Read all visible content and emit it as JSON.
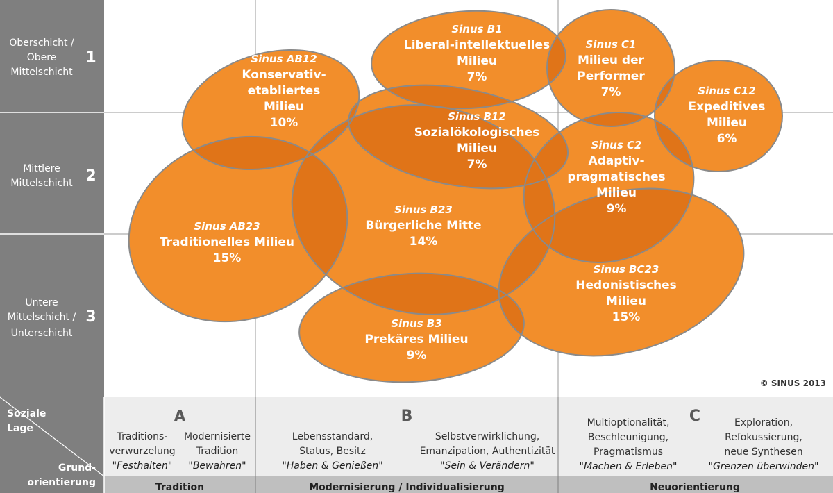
{
  "rows": [
    {
      "label_lines": [
        "Oberschicht /",
        "Obere",
        "Mittelschicht"
      ],
      "number": "1"
    },
    {
      "label_lines": [
        "Mittlere",
        "Mittelschicht"
      ],
      "number": "2"
    },
    {
      "label_lines": [
        "Untere",
        "Mittelschicht /",
        "Unterschicht"
      ],
      "number": "3"
    }
  ],
  "milieus": [
    {
      "code": "Sinus AB12",
      "lines": [
        "Konservativ-",
        "etabliertes",
        "Milieu"
      ],
      "percent": "10%"
    },
    {
      "code": "Sinus B1",
      "lines": [
        "Liberal-intellektuelles",
        "Milieu"
      ],
      "percent": "7%"
    },
    {
      "code": "Sinus C1",
      "lines": [
        "Milieu der",
        "Performer"
      ],
      "percent": "7%"
    },
    {
      "code": "Sinus C12",
      "lines": [
        "Expeditives",
        "Milieu"
      ],
      "percent": "6%"
    },
    {
      "code": "Sinus B12",
      "lines": [
        "Sozialökologisches",
        "Milieu"
      ],
      "percent": "7%"
    },
    {
      "code": "Sinus C2",
      "lines": [
        "Adaptiv-",
        "pragmatisches",
        "Milieu"
      ],
      "percent": "9%"
    },
    {
      "code": "Sinus AB23",
      "lines": [
        "Traditionelles Milieu"
      ],
      "percent": "15%"
    },
    {
      "code": "Sinus B23",
      "lines": [
        "Bürgerliche Mitte"
      ],
      "percent": "14%"
    },
    {
      "code": "Sinus BC23",
      "lines": [
        "Hedonistisches",
        "Milieu"
      ],
      "percent": "15%"
    },
    {
      "code": "Sinus B3",
      "lines": [
        "Prekäres Milieu"
      ],
      "percent": "9%"
    }
  ],
  "copyright": "© SINUS 2013",
  "axis": {
    "soziale_lage_lines": [
      "Soziale",
      "Lage"
    ],
    "grundorientierung_lines": [
      "Grund-",
      "orientierung"
    ]
  },
  "columns": [
    {
      "letter": "A",
      "bottom_label": "Tradition"
    },
    {
      "letter": "B",
      "bottom_label": "Modernisierung / Individualisierung"
    },
    {
      "letter": "C",
      "bottom_label": "Neuorientierung"
    }
  ],
  "orientations": [
    {
      "lines": [
        "Traditions-",
        "verwurzelung"
      ],
      "motto": "\"Festhalten\""
    },
    {
      "lines": [
        "Modernisierte",
        "Tradition"
      ],
      "motto": "\"Bewahren\""
    },
    {
      "lines": [
        "Lebensstandard,",
        "Status, Besitz"
      ],
      "motto": "\"Haben & Genießen\""
    },
    {
      "lines": [
        "Selbstverwirklichung,",
        "Emanzipation, Authentizität"
      ],
      "motto": "\"Sein & Verändern\""
    },
    {
      "lines": [
        "Multioptionalität,",
        "Beschleunigung,",
        "Pragmatismus"
      ],
      "motto": "\"Machen & Erleben\""
    },
    {
      "lines": [
        "Exploration,",
        "Refokussierung,",
        "neue Synthesen"
      ],
      "motto": "\"Grenzen überwinden\""
    }
  ],
  "colors": {
    "milieu_fill": "#F28E2B",
    "overlap_fill": "#E07418",
    "outline": "#8A8A8A",
    "panel": "#7F7F7F"
  }
}
